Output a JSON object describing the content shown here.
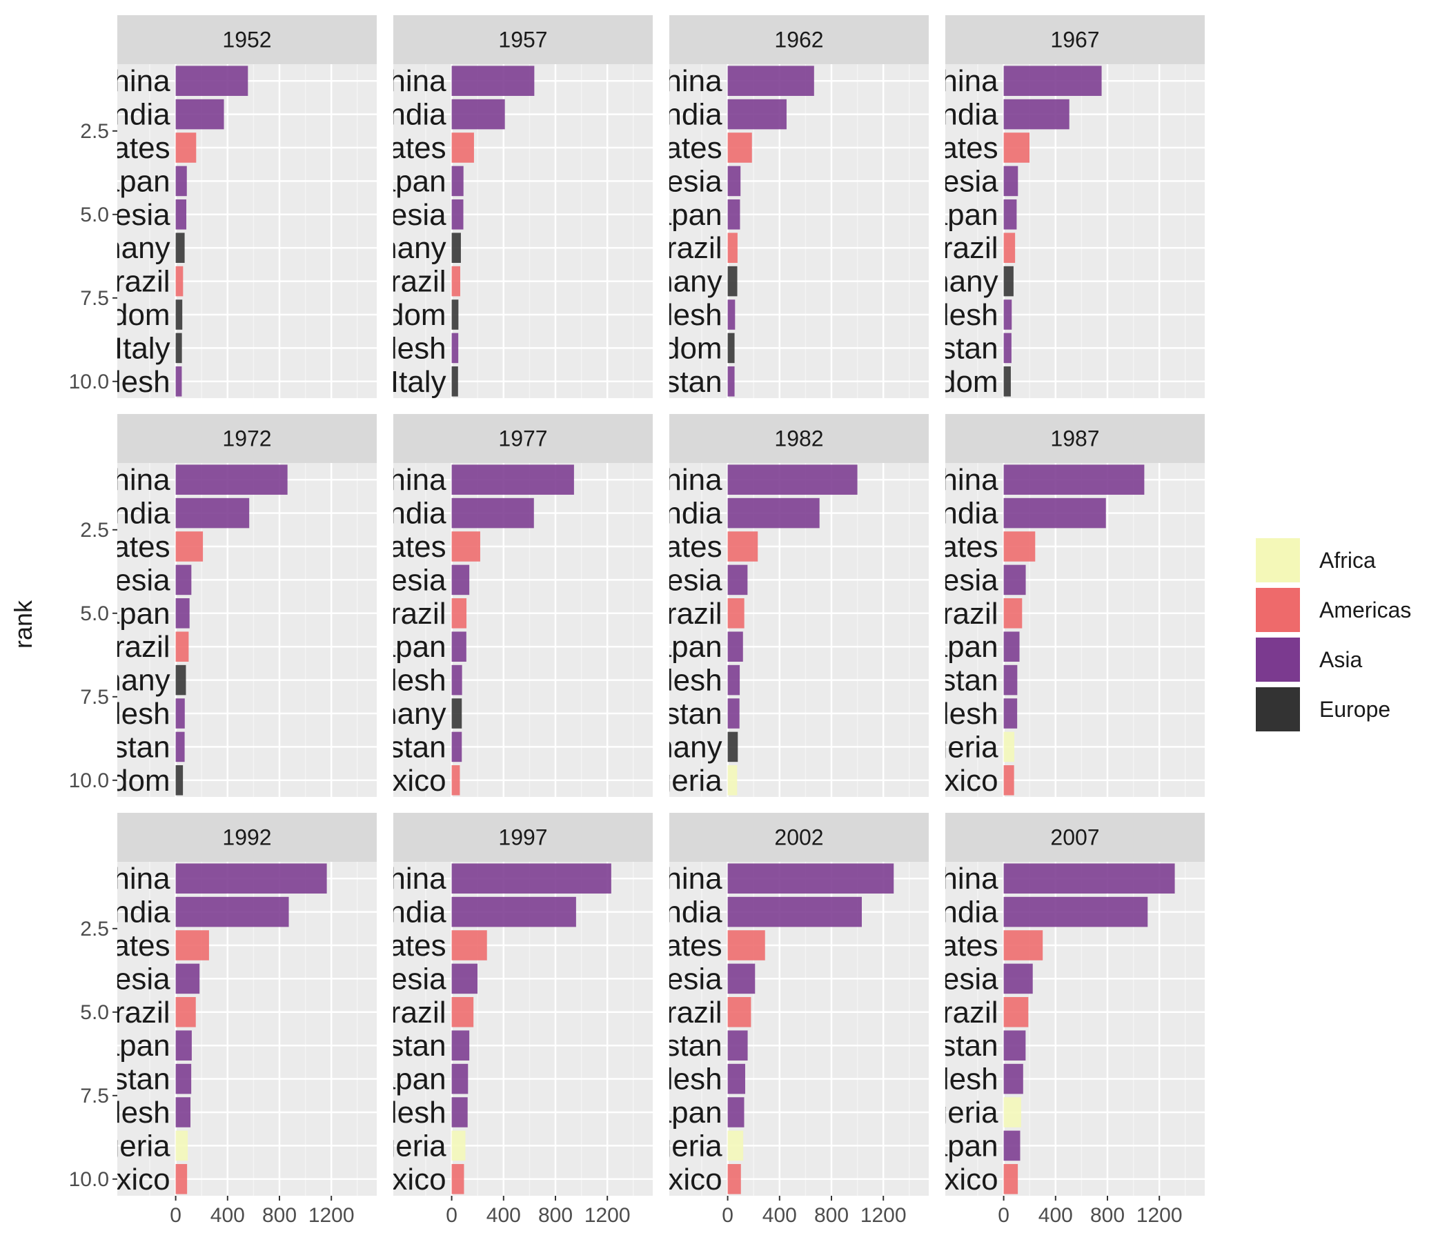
{
  "chart_data": {
    "type": "bar",
    "orientation": "horizontal",
    "facet_by": "year",
    "y_axis": {
      "label": "rank",
      "ticks": [
        "2.5",
        "5.0",
        "7.5",
        "10.0"
      ],
      "tick_values": [
        2.5,
        5.0,
        7.5,
        10.0
      ],
      "range": [
        0.5,
        10.5
      ]
    },
    "x_axis": {
      "ticks": [
        "0",
        "400",
        "800",
        "1200"
      ],
      "tick_values": [
        0,
        400,
        800,
        1200
      ],
      "range": [
        -450,
        1550
      ]
    },
    "grid": true,
    "legend": {
      "position": "right",
      "entries": [
        {
          "name": "Africa",
          "color": "#f4f8b8"
        },
        {
          "name": "Americas",
          "color": "#ee6a6b"
        },
        {
          "name": "Asia",
          "color": "#7b3a8f"
        },
        {
          "name": "Europe",
          "color": "#333333"
        }
      ]
    },
    "panels": [
      {
        "year": "1952",
        "bars": [
          {
            "rank": 1,
            "label": "China",
            "value": 557,
            "continent": "Asia"
          },
          {
            "rank": 2,
            "label": "India",
            "value": 372,
            "continent": "Asia"
          },
          {
            "rank": 3,
            "label": "States",
            "value": 158,
            "continent": "Americas"
          },
          {
            "rank": 4,
            "label": "Japan",
            "value": 86,
            "continent": "Asia"
          },
          {
            "rank": 5,
            "label": "onesia",
            "value": 82,
            "continent": "Asia"
          },
          {
            "rank": 6,
            "label": "ermany",
            "value": 69,
            "continent": "Europe"
          },
          {
            "rank": 7,
            "label": "Brazil",
            "value": 57,
            "continent": "Americas"
          },
          {
            "rank": 8,
            "label": "ngdom",
            "value": 51,
            "continent": "Europe"
          },
          {
            "rank": 9,
            "label": "Italy",
            "value": 48,
            "continent": "Europe"
          },
          {
            "rank": 10,
            "label": "ladesh",
            "value": 47,
            "continent": "Asia"
          }
        ]
      },
      {
        "year": "1957",
        "bars": [
          {
            "rank": 1,
            "label": "China",
            "value": 637,
            "continent": "Asia"
          },
          {
            "rank": 2,
            "label": "India",
            "value": 410,
            "continent": "Asia"
          },
          {
            "rank": 3,
            "label": "States",
            "value": 172,
            "continent": "Americas"
          },
          {
            "rank": 4,
            "label": "Japan",
            "value": 91,
            "continent": "Asia"
          },
          {
            "rank": 5,
            "label": "onesia",
            "value": 90,
            "continent": "Asia"
          },
          {
            "rank": 6,
            "label": "ermany",
            "value": 71,
            "continent": "Europe"
          },
          {
            "rank": 7,
            "label": "Brazil",
            "value": 66,
            "continent": "Americas"
          },
          {
            "rank": 8,
            "label": "ngdom",
            "value": 52,
            "continent": "Europe"
          },
          {
            "rank": 9,
            "label": "ladesh",
            "value": 51,
            "continent": "Asia"
          },
          {
            "rank": 10,
            "label": "Italy",
            "value": 49,
            "continent": "Europe"
          }
        ]
      },
      {
        "year": "1962",
        "bars": [
          {
            "rank": 1,
            "label": "China",
            "value": 666,
            "continent": "Asia"
          },
          {
            "rank": 2,
            "label": "India",
            "value": 454,
            "continent": "Asia"
          },
          {
            "rank": 3,
            "label": "States",
            "value": 187,
            "continent": "Americas"
          },
          {
            "rank": 4,
            "label": "onesia",
            "value": 99,
            "continent": "Asia"
          },
          {
            "rank": 5,
            "label": "Japan",
            "value": 95,
            "continent": "Asia"
          },
          {
            "rank": 6,
            "label": "Brazil",
            "value": 76,
            "continent": "Americas"
          },
          {
            "rank": 7,
            "label": "ermany",
            "value": 74,
            "continent": "Europe"
          },
          {
            "rank": 8,
            "label": "ladesh",
            "value": 57,
            "continent": "Asia"
          },
          {
            "rank": 9,
            "label": "ngdom",
            "value": 53,
            "continent": "Europe"
          },
          {
            "rank": 10,
            "label": "akistan",
            "value": 53,
            "continent": "Asia"
          }
        ]
      },
      {
        "year": "1967",
        "bars": [
          {
            "rank": 1,
            "label": "China",
            "value": 755,
            "continent": "Asia"
          },
          {
            "rank": 2,
            "label": "India",
            "value": 506,
            "continent": "Asia"
          },
          {
            "rank": 3,
            "label": "States",
            "value": 199,
            "continent": "Americas"
          },
          {
            "rank": 4,
            "label": "onesia",
            "value": 110,
            "continent": "Asia"
          },
          {
            "rank": 5,
            "label": "Japan",
            "value": 100,
            "continent": "Asia"
          },
          {
            "rank": 6,
            "label": "Brazil",
            "value": 88,
            "continent": "Americas"
          },
          {
            "rank": 7,
            "label": "ermany",
            "value": 76,
            "continent": "Europe"
          },
          {
            "rank": 8,
            "label": "ladesh",
            "value": 62,
            "continent": "Asia"
          },
          {
            "rank": 9,
            "label": "akistan",
            "value": 60,
            "continent": "Asia"
          },
          {
            "rank": 10,
            "label": "ngdom",
            "value": 55,
            "continent": "Europe"
          }
        ]
      },
      {
        "year": "1972",
        "bars": [
          {
            "rank": 1,
            "label": "China",
            "value": 862,
            "continent": "Asia"
          },
          {
            "rank": 2,
            "label": "India",
            "value": 567,
            "continent": "Asia"
          },
          {
            "rank": 3,
            "label": "States",
            "value": 210,
            "continent": "Americas"
          },
          {
            "rank": 4,
            "label": "onesia",
            "value": 121,
            "continent": "Asia"
          },
          {
            "rank": 5,
            "label": "Japan",
            "value": 107,
            "continent": "Asia"
          },
          {
            "rank": 6,
            "label": "Brazil",
            "value": 100,
            "continent": "Americas"
          },
          {
            "rank": 7,
            "label": "ermany",
            "value": 79,
            "continent": "Europe"
          },
          {
            "rank": 8,
            "label": "ladesh",
            "value": 70,
            "continent": "Asia"
          },
          {
            "rank": 9,
            "label": "akistan",
            "value": 69,
            "continent": "Asia"
          },
          {
            "rank": 10,
            "label": "ngdom",
            "value": 56,
            "continent": "Europe"
          }
        ]
      },
      {
        "year": "1977",
        "bars": [
          {
            "rank": 1,
            "label": "China",
            "value": 943,
            "continent": "Asia"
          },
          {
            "rank": 2,
            "label": "India",
            "value": 634,
            "continent": "Asia"
          },
          {
            "rank": 3,
            "label": "States",
            "value": 220,
            "continent": "Americas"
          },
          {
            "rank": 4,
            "label": "onesia",
            "value": 136,
            "continent": "Asia"
          },
          {
            "rank": 5,
            "label": "Brazil",
            "value": 114,
            "continent": "Americas"
          },
          {
            "rank": 6,
            "label": "Japan",
            "value": 113,
            "continent": "Asia"
          },
          {
            "rank": 7,
            "label": "ladesh",
            "value": 80,
            "continent": "Asia"
          },
          {
            "rank": 8,
            "label": "ermany",
            "value": 78,
            "continent": "Europe"
          },
          {
            "rank": 9,
            "label": "akistan",
            "value": 78,
            "continent": "Asia"
          },
          {
            "rank": 10,
            "label": "Mexico",
            "value": 63,
            "continent": "Americas"
          }
        ]
      },
      {
        "year": "1982",
        "bars": [
          {
            "rank": 1,
            "label": "China",
            "value": 1000,
            "continent": "Asia"
          },
          {
            "rank": 2,
            "label": "India",
            "value": 708,
            "continent": "Asia"
          },
          {
            "rank": 3,
            "label": "States",
            "value": 232,
            "continent": "Americas"
          },
          {
            "rank": 4,
            "label": "onesia",
            "value": 153,
            "continent": "Asia"
          },
          {
            "rank": 5,
            "label": "Brazil",
            "value": 128,
            "continent": "Americas"
          },
          {
            "rank": 6,
            "label": "Japan",
            "value": 118,
            "continent": "Asia"
          },
          {
            "rank": 7,
            "label": "ladesh",
            "value": 93,
            "continent": "Asia"
          },
          {
            "rank": 8,
            "label": "akistan",
            "value": 91,
            "continent": "Asia"
          },
          {
            "rank": 9,
            "label": "ermany",
            "value": 78,
            "continent": "Europe"
          },
          {
            "rank": 10,
            "label": "Nigeria",
            "value": 73,
            "continent": "Africa"
          }
        ]
      },
      {
        "year": "1987",
        "bars": [
          {
            "rank": 1,
            "label": "China",
            "value": 1084,
            "continent": "Asia"
          },
          {
            "rank": 2,
            "label": "India",
            "value": 788,
            "continent": "Asia"
          },
          {
            "rank": 3,
            "label": "States",
            "value": 243,
            "continent": "Americas"
          },
          {
            "rank": 4,
            "label": "onesia",
            "value": 170,
            "continent": "Asia"
          },
          {
            "rank": 5,
            "label": "Brazil",
            "value": 142,
            "continent": "Americas"
          },
          {
            "rank": 6,
            "label": "Japan",
            "value": 122,
            "continent": "Asia"
          },
          {
            "rank": 7,
            "label": "akistan",
            "value": 105,
            "continent": "Asia"
          },
          {
            "rank": 8,
            "label": "ladesh",
            "value": 104,
            "continent": "Asia"
          },
          {
            "rank": 9,
            "label": "Nigeria",
            "value": 82,
            "continent": "Africa"
          },
          {
            "rank": 10,
            "label": "Mexico",
            "value": 80,
            "continent": "Americas"
          }
        ]
      },
      {
        "year": "1992",
        "bars": [
          {
            "rank": 1,
            "label": "China",
            "value": 1165,
            "continent": "Asia"
          },
          {
            "rank": 2,
            "label": "India",
            "value": 872,
            "continent": "Asia"
          },
          {
            "rank": 3,
            "label": "States",
            "value": 257,
            "continent": "Americas"
          },
          {
            "rank": 4,
            "label": "onesia",
            "value": 184,
            "continent": "Asia"
          },
          {
            "rank": 5,
            "label": "Brazil",
            "value": 155,
            "continent": "Americas"
          },
          {
            "rank": 6,
            "label": "Japan",
            "value": 124,
            "continent": "Asia"
          },
          {
            "rank": 7,
            "label": "akistan",
            "value": 120,
            "continent": "Asia"
          },
          {
            "rank": 8,
            "label": "ladesh",
            "value": 114,
            "continent": "Asia"
          },
          {
            "rank": 9,
            "label": "Nigeria",
            "value": 93,
            "continent": "Africa"
          },
          {
            "rank": 10,
            "label": "Mexico",
            "value": 88,
            "continent": "Americas"
          }
        ]
      },
      {
        "year": "1997",
        "bars": [
          {
            "rank": 1,
            "label": "China",
            "value": 1230,
            "continent": "Asia"
          },
          {
            "rank": 2,
            "label": "India",
            "value": 959,
            "continent": "Asia"
          },
          {
            "rank": 3,
            "label": "States",
            "value": 272,
            "continent": "Americas"
          },
          {
            "rank": 4,
            "label": "onesia",
            "value": 199,
            "continent": "Asia"
          },
          {
            "rank": 5,
            "label": "Brazil",
            "value": 168,
            "continent": "Americas"
          },
          {
            "rank": 6,
            "label": "akistan",
            "value": 136,
            "continent": "Asia"
          },
          {
            "rank": 7,
            "label": "Japan",
            "value": 126,
            "continent": "Asia"
          },
          {
            "rank": 8,
            "label": "ladesh",
            "value": 123,
            "continent": "Asia"
          },
          {
            "rank": 9,
            "label": "Nigeria",
            "value": 106,
            "continent": "Africa"
          },
          {
            "rank": 10,
            "label": "Mexico",
            "value": 95,
            "continent": "Americas"
          }
        ]
      },
      {
        "year": "2002",
        "bars": [
          {
            "rank": 1,
            "label": "China",
            "value": 1280,
            "continent": "Asia"
          },
          {
            "rank": 2,
            "label": "India",
            "value": 1034,
            "continent": "Asia"
          },
          {
            "rank": 3,
            "label": "States",
            "value": 288,
            "continent": "Americas"
          },
          {
            "rank": 4,
            "label": "onesia",
            "value": 211,
            "continent": "Asia"
          },
          {
            "rank": 5,
            "label": "Brazil",
            "value": 180,
            "continent": "Americas"
          },
          {
            "rank": 6,
            "label": "akistan",
            "value": 154,
            "continent": "Asia"
          },
          {
            "rank": 7,
            "label": "ladesh",
            "value": 135,
            "continent": "Asia"
          },
          {
            "rank": 8,
            "label": "Japan",
            "value": 127,
            "continent": "Asia"
          },
          {
            "rank": 9,
            "label": "Nigeria",
            "value": 120,
            "continent": "Africa"
          },
          {
            "rank": 10,
            "label": "Mexico",
            "value": 102,
            "continent": "Americas"
          }
        ]
      },
      {
        "year": "2007",
        "bars": [
          {
            "rank": 1,
            "label": "China",
            "value": 1319,
            "continent": "Asia"
          },
          {
            "rank": 2,
            "label": "India",
            "value": 1110,
            "continent": "Asia"
          },
          {
            "rank": 3,
            "label": "States",
            "value": 301,
            "continent": "Americas"
          },
          {
            "rank": 4,
            "label": "onesia",
            "value": 224,
            "continent": "Asia"
          },
          {
            "rank": 5,
            "label": "Brazil",
            "value": 190,
            "continent": "Americas"
          },
          {
            "rank": 6,
            "label": "akistan",
            "value": 169,
            "continent": "Asia"
          },
          {
            "rank": 7,
            "label": "ladesh",
            "value": 150,
            "continent": "Asia"
          },
          {
            "rank": 8,
            "label": "Nigeria",
            "value": 135,
            "continent": "Africa"
          },
          {
            "rank": 9,
            "label": "Japan",
            "value": 127,
            "continent": "Asia"
          },
          {
            "rank": 10,
            "label": "Mexico",
            "value": 109,
            "continent": "Americas"
          }
        ]
      }
    ]
  }
}
